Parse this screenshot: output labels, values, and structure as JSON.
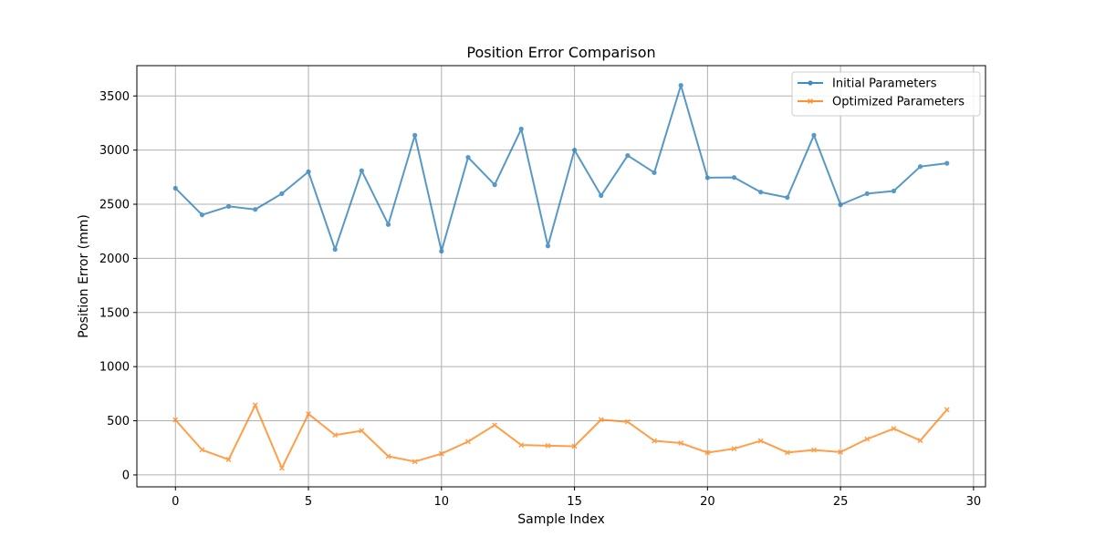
{
  "chart_data": {
    "type": "line",
    "title": "Position Error Comparison",
    "xlabel": "Sample Index",
    "ylabel": "Position Error (mm)",
    "xlim": [
      -1.45,
      30.45
    ],
    "ylim": [
      -110,
      3780
    ],
    "xticks": [
      0,
      5,
      10,
      15,
      20,
      25,
      30
    ],
    "yticks": [
      0,
      500,
      1000,
      1500,
      2000,
      2500,
      3000,
      3500
    ],
    "grid": true,
    "legend_position": "top-right",
    "x": [
      0,
      1,
      2,
      3,
      4,
      5,
      6,
      7,
      8,
      9,
      10,
      11,
      12,
      13,
      14,
      15,
      16,
      17,
      18,
      19,
      20,
      21,
      22,
      23,
      24,
      25,
      26,
      27,
      28,
      29
    ],
    "series": [
      {
        "name": "Initial Parameters",
        "color": "#1f77b4",
        "marker": "circle",
        "values": [
          2648,
          2402,
          2480,
          2452,
          2598,
          2800,
          2083,
          2810,
          2313,
          3137,
          2066,
          2933,
          2680,
          3195,
          2115,
          3000,
          2580,
          2950,
          2792,
          3598,
          2745,
          2747,
          2612,
          2562,
          3137,
          2496,
          2598,
          2622,
          2848,
          2878
        ]
      },
      {
        "name": "Optimized Parameters",
        "color": "#ff7f0e",
        "marker": "x",
        "values": [
          508,
          232,
          142,
          645,
          63,
          563,
          368,
          408,
          172,
          123,
          196,
          308,
          460,
          276,
          270,
          265,
          510,
          490,
          315,
          294,
          206,
          242,
          315,
          207,
          230,
          211,
          331,
          427,
          318,
          602
        ]
      }
    ]
  }
}
